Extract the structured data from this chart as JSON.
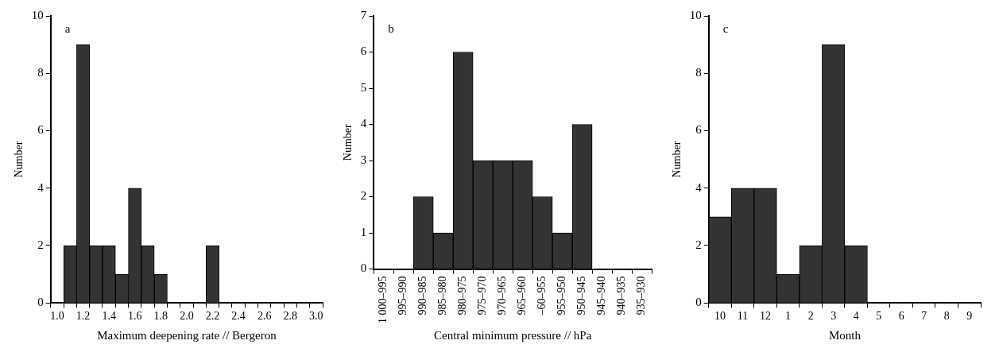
{
  "chart_data": [
    {
      "type": "bar",
      "xlabel": "Maximum deepening rate // Bergeron",
      "ylabel": "Number",
      "annotations": [
        "a"
      ],
      "categories": [
        "1.0",
        null,
        "1.2",
        null,
        "1.4",
        null,
        "1.6",
        null,
        "1.8",
        null,
        "2.0",
        null,
        "2.2",
        null,
        "2.4",
        null,
        "2.6",
        null,
        "2.8",
        null,
        "3.0"
      ],
      "values": [
        0,
        2,
        9,
        2,
        2,
        1,
        4,
        2,
        1,
        0,
        0,
        0,
        2,
        0,
        0,
        0,
        0,
        0,
        0,
        0,
        0
      ],
      "color": "#333333",
      "ylim": [
        0,
        10
      ],
      "yticks": [
        0,
        2,
        4,
        6,
        8,
        10
      ],
      "grid": false
    },
    {
      "type": "bar",
      "xlabel": "Central minimum pressure // hPa",
      "ylabel": "Number",
      "annotations": [
        "b"
      ],
      "categories": [
        "1 000–995",
        "995–990",
        "990–985",
        "985–980",
        "980–975",
        "975–970",
        "970–965",
        "965–960",
        "–60–955",
        "955–950",
        "950–945",
        "945–940",
        "940–935",
        "935–930"
      ],
      "values": [
        0,
        0,
        2,
        1,
        6,
        3,
        3,
        3,
        2,
        1,
        4,
        0,
        0,
        0
      ],
      "color": "#333333",
      "ylim": [
        0,
        7
      ],
      "yticks": [
        0,
        1,
        2,
        3,
        4,
        5,
        6,
        7
      ],
      "grid": false
    },
    {
      "type": "bar",
      "xlabel": "Month",
      "ylabel": "Number",
      "annotations": [
        "c"
      ],
      "categories": [
        "10",
        "11",
        "12",
        "1",
        "2",
        "3",
        "4",
        "5",
        "6",
        "7",
        "8",
        "9"
      ],
      "values": [
        3,
        4,
        4,
        1,
        2,
        9,
        2,
        0,
        0,
        0,
        0,
        0
      ],
      "color": "#333333",
      "ylim": [
        0,
        10
      ],
      "yticks": [
        0,
        2,
        4,
        6,
        8,
        10
      ],
      "grid": false
    }
  ]
}
